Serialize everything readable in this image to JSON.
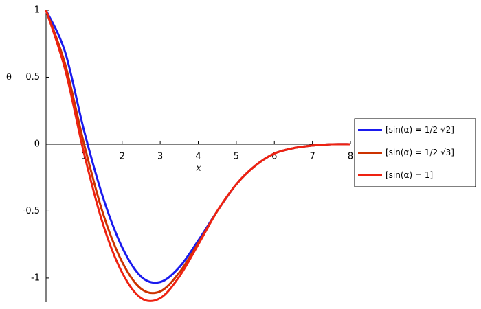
{
  "chart_data": {
    "type": "line",
    "xlabel": "x",
    "ylabel": "θ",
    "x": [
      0,
      0.5,
      1,
      1.5,
      2,
      2.5,
      3,
      3.5,
      4,
      4.5,
      5,
      5.5,
      6,
      6.5,
      7,
      7.5,
      8
    ],
    "series": [
      {
        "name": "[sin(α) = 1/2 √2]",
        "color": "#1a1aee",
        "values": [
          1,
          0.69,
          0.1,
          -0.4,
          -0.77,
          -0.99,
          -1.03,
          -0.92,
          -0.72,
          -0.5,
          -0.3,
          -0.16,
          -0.07,
          -0.03,
          -0.01,
          0,
          0
        ]
      },
      {
        "name": "[sin(α) = 1/2 √3]",
        "color": "#cc3300",
        "values": [
          1,
          0.6,
          0.0,
          -0.52,
          -0.88,
          -1.08,
          -1.1,
          -0.96,
          -0.74,
          -0.5,
          -0.3,
          -0.16,
          -0.07,
          -0.03,
          -0.01,
          0,
          0
        ]
      },
      {
        "name": "[sin(α) = 1]",
        "color": "#ee2211",
        "values": [
          1,
          0.56,
          -0.07,
          -0.6,
          -0.96,
          -1.15,
          -1.15,
          -0.99,
          -0.75,
          -0.5,
          -0.3,
          -0.16,
          -0.07,
          -0.03,
          -0.01,
          0,
          0
        ]
      }
    ],
    "xlim": [
      0,
      8
    ],
    "xticks": [
      1,
      2,
      3,
      4,
      5,
      6,
      7,
      8
    ],
    "ylim": [
      -1.18,
      1
    ],
    "yticks": [
      -1,
      -0.5,
      0,
      0.5,
      1
    ],
    "legend": "right"
  }
}
